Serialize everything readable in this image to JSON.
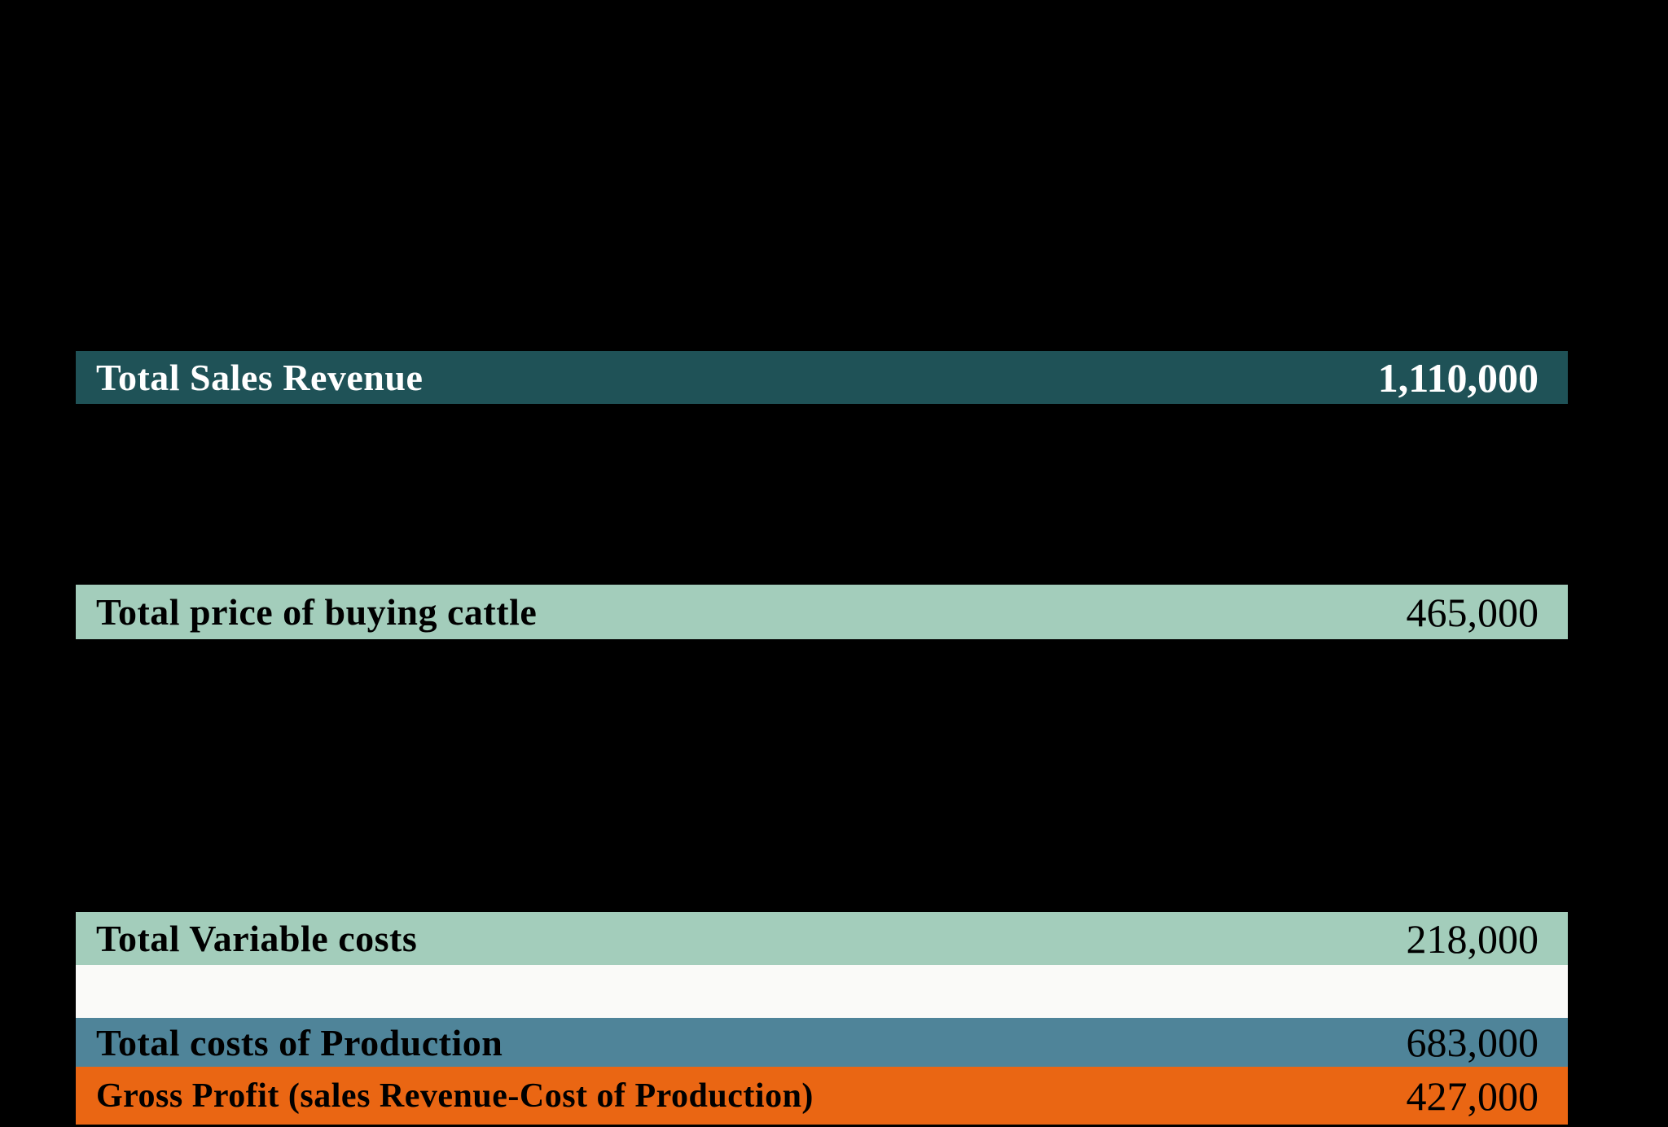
{
  "page": {
    "background": "#000000"
  },
  "spreadsheet": {
    "rows": [
      {
        "id": "total-sales-revenue",
        "label": "Total Sales Revenue",
        "value": "1,110,000",
        "bg": "#1F5257",
        "fg": "#FFFFFF"
      },
      {
        "id": "total-price-of-buying-cattle",
        "label": "Total price of buying cattle",
        "value": "465,000",
        "bg": "#A3CDBB",
        "fg": "#000000"
      },
      {
        "id": "total-variable-costs",
        "label": "Total Variable costs",
        "value": "218,000",
        "bg": "#A3CDBB",
        "fg": "#000000"
      },
      {
        "id": "spacer-row",
        "label": "",
        "value": "",
        "bg": "#FAFAF8",
        "fg": "#000000"
      },
      {
        "id": "total-costs-of-production",
        "label": "Total costs of Production",
        "value": "683,000",
        "bg": "#4F8499",
        "fg": "#000000"
      },
      {
        "id": "gross-profit",
        "label": "Gross Profit (sales Revenue-Cost of Production)",
        "value": "427,000",
        "bg": "#EA6613",
        "fg": "#000000"
      }
    ]
  }
}
